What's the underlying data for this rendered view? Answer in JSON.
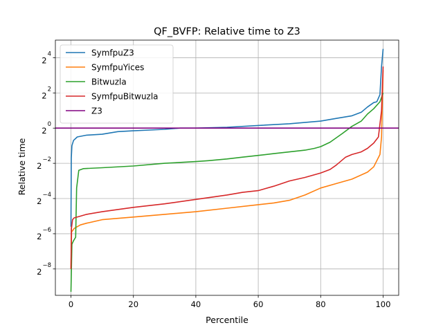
{
  "chart_data": {
    "type": "line",
    "title": "QF_BVFP: Relative time to Z3",
    "xlabel": "Percentile",
    "ylabel": "Relative time",
    "xlim": [
      -5,
      105
    ],
    "ylim_log2": [
      -9.5,
      5
    ],
    "yscale": "log2",
    "grid": true,
    "legend_position": "top-left",
    "x_ticks": [
      0,
      20,
      40,
      60,
      80,
      100
    ],
    "y_ticks": [
      {
        "base": "2",
        "exp": "−8",
        "value_log2": -8
      },
      {
        "base": "2",
        "exp": "−6",
        "value_log2": -6
      },
      {
        "base": "2",
        "exp": "−4",
        "value_log2": -4
      },
      {
        "base": "2",
        "exp": "−2",
        "value_log2": -2
      },
      {
        "base": "2",
        "exp": "0",
        "value_log2": 0
      },
      {
        "base": "2",
        "exp": "2",
        "value_log2": 2
      },
      {
        "base": "2",
        "exp": "4",
        "value_log2": 4
      }
    ],
    "series": [
      {
        "name": "SymfpuZ3",
        "color": "#1f77b4",
        "x": [
          0,
          0.1,
          0.3,
          0.8,
          2,
          5,
          10,
          15,
          20,
          30,
          35,
          40,
          50,
          60,
          70,
          80,
          85,
          90,
          93,
          95,
          97,
          98,
          99,
          99.5,
          100
        ],
        "log2_y": [
          -5.6,
          -1.7,
          -1.0,
          -0.7,
          -0.5,
          -0.4,
          -0.35,
          -0.2,
          -0.15,
          -0.07,
          0,
          0,
          0.05,
          0.15,
          0.25,
          0.4,
          0.55,
          0.7,
          0.9,
          1.2,
          1.45,
          1.5,
          1.9,
          3.5,
          4.5
        ]
      },
      {
        "name": "SymfpuYices",
        "color": "#ff7f0e",
        "x": [
          0,
          0.2,
          1,
          3,
          5,
          10,
          20,
          30,
          40,
          50,
          60,
          65,
          70,
          75,
          80,
          85,
          90,
          95,
          97,
          99,
          99.5,
          100
        ],
        "log2_y": [
          -8,
          -5.9,
          -5.7,
          -5.5,
          -5.4,
          -5.2,
          -5.05,
          -4.9,
          -4.75,
          -4.55,
          -4.35,
          -4.25,
          -4.1,
          -3.8,
          -3.4,
          -3.15,
          -2.9,
          -2.5,
          -2.2,
          -1.5,
          -0.5,
          3.3
        ]
      },
      {
        "name": "Bitwuzla",
        "color": "#2ca02c",
        "x": [
          0,
          0.3,
          0.8,
          1.5,
          1.8,
          2.5,
          4,
          10,
          20,
          30,
          40,
          44,
          50,
          55,
          60,
          65,
          70,
          75,
          78,
          80,
          83,
          87,
          90,
          93,
          95,
          97,
          99,
          100
        ],
        "log2_y": [
          -9.3,
          -6.6,
          -6.4,
          -6.2,
          -3.4,
          -2.4,
          -2.3,
          -2.25,
          -2.15,
          -2.0,
          -1.9,
          -1.85,
          -1.75,
          -1.65,
          -1.55,
          -1.45,
          -1.35,
          -1.25,
          -1.15,
          -1.05,
          -0.8,
          -0.3,
          0.1,
          0.4,
          0.8,
          1.1,
          1.5,
          2.0
        ]
      },
      {
        "name": "SymfpuBitwuzla",
        "color": "#d62728",
        "x": [
          0,
          0.15,
          0.5,
          1,
          3,
          5,
          10,
          20,
          30,
          40,
          50,
          55,
          60,
          65,
          70,
          75,
          80,
          83,
          85,
          88,
          90,
          93,
          95,
          97,
          98.5,
          99.5,
          100
        ],
        "log2_y": [
          -8,
          -5.7,
          -5.2,
          -5.1,
          -5.0,
          -4.9,
          -4.75,
          -4.5,
          -4.3,
          -4.05,
          -3.8,
          -3.65,
          -3.55,
          -3.3,
          -3.0,
          -2.8,
          -2.55,
          -2.35,
          -2.1,
          -1.65,
          -1.5,
          -1.35,
          -1.15,
          -0.85,
          -0.5,
          1.0,
          3.5
        ]
      },
      {
        "name": "Z3",
        "color": "#800080",
        "x": [
          -5,
          105
        ],
        "log2_y": [
          0,
          0
        ]
      }
    ]
  }
}
